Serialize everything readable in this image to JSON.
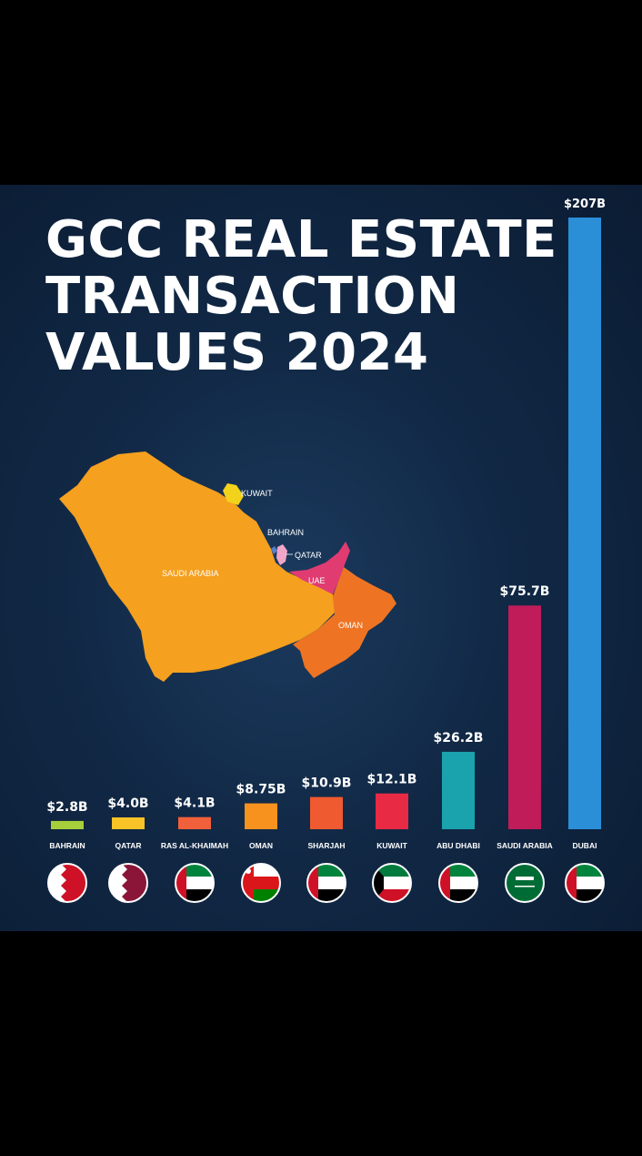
{
  "title_lines": [
    "GCC REAL ESTATE",
    "TRANSACTION",
    "VALUES 2024"
  ],
  "map": {
    "labels": {
      "saudi": "SAUDI ARABIA",
      "kuwait": "KUWAIT",
      "bahrain": "BAHRAIN",
      "qatar": "QATAR",
      "uae": "UAE",
      "oman": "OMAN"
    },
    "colors": {
      "saudi": "#f5a01e",
      "kuwait": "#f2d21b",
      "bahrain": "#5a7ec8",
      "qatar": "#f0a6c8",
      "uae": "#e03c72",
      "oman": "#ee7424"
    }
  },
  "chart_data": {
    "type": "bar",
    "title": "GCC REAL ESTATE TRANSACTION VALUES 2024",
    "unit": "B USD",
    "categories": [
      "BAHRAIN",
      "QATAR",
      "RAS AL-KHAIMAH",
      "OMAN",
      "SHARJAH",
      "KUWAIT",
      "ABU DHABI",
      "SAUDI ARABIA",
      "DUBAI"
    ],
    "values": [
      2.8,
      4.0,
      4.1,
      8.75,
      10.9,
      12.1,
      26.2,
      75.7,
      207
    ],
    "value_labels": [
      "$2.8B",
      "$4.0B",
      "$4.1B",
      "$8.75B",
      "$10.9B",
      "$12.1B",
      "$26.2B",
      "$75.7B",
      "$207B"
    ],
    "colors": [
      "#a7cf3b",
      "#f7c326",
      "#f0603a",
      "#f7921e",
      "#f05a30",
      "#e82a45",
      "#1aa3ad",
      "#c01c5a",
      "#2b8fd8"
    ],
    "flag_icons": [
      "bahrain-flag-icon",
      "qatar-flag-icon",
      "uae-flag-icon",
      "oman-flag-icon",
      "uae-flag-icon",
      "kuwait-flag-icon",
      "uae-flag-icon",
      "saudi-flag-icon",
      "uae-flag-icon"
    ],
    "ylim": [
      0,
      207
    ]
  }
}
